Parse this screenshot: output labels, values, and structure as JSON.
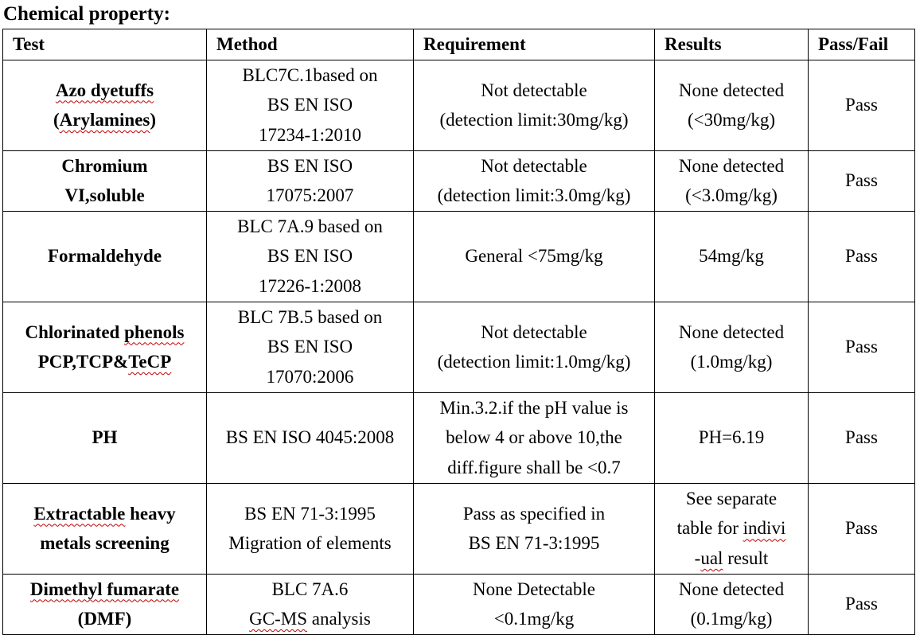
{
  "page_title": "Chemical property:",
  "columns": [
    "Test",
    "Method",
    "Requirement",
    "Results",
    "Pass/Fail"
  ],
  "rows": [
    {
      "test": [
        [
          "",
          "Azo dyetuffs"
        ],
        [
          "(",
          "Arylamines",
          ")"
        ]
      ],
      "method": [
        "BLC7C.1based on",
        "BS EN ISO",
        "17234-1:2010"
      ],
      "requirement": [
        "Not detectable",
        "(detection limit:30mg/kg)"
      ],
      "results": [
        "None detected",
        "(<30mg/kg)"
      ],
      "pass_fail": "Pass"
    },
    {
      "test": [
        [
          "Chromium"
        ],
        [
          "VI,soluble"
        ]
      ],
      "method": [
        "BS EN ISO",
        "17075:2007"
      ],
      "requirement": [
        "Not detectable",
        "(detection limit:3.0mg/kg)"
      ],
      "results": [
        "None detected",
        "(<3.0mg/kg)"
      ],
      "pass_fail": "Pass"
    },
    {
      "test": [
        [
          "Formaldehyde"
        ]
      ],
      "method": [
        "BLC 7A.9 based on",
        "BS EN ISO",
        "17226-1:2008"
      ],
      "requirement": [
        "General <75mg/kg"
      ],
      "results": [
        "54mg/kg"
      ],
      "pass_fail": "Pass"
    },
    {
      "test": [
        [
          "Chlorinated ",
          "phenols"
        ],
        [
          "PCP,TCP&",
          "TeCP"
        ]
      ],
      "method": [
        "BLC 7B.5 based on",
        "BS EN ISO",
        "17070:2006"
      ],
      "requirement": [
        "Not detectable",
        "(detection limit:1.0mg/kg)"
      ],
      "results": [
        "None detected",
        "(1.0mg/kg)"
      ],
      "pass_fail": "Pass"
    },
    {
      "test": [
        [
          "PH"
        ]
      ],
      "method": [
        "BS EN ISO 4045:2008"
      ],
      "requirement": [
        "Min.3.2.if the pH value is",
        "below 4 or above 10,the",
        "diff.figure shall be <0.7"
      ],
      "results": [
        "PH=6.19"
      ],
      "pass_fail": "Pass"
    },
    {
      "test": [
        [
          "",
          "Extractable",
          " heavy"
        ],
        [
          "metals screening"
        ]
      ],
      "method": [
        "BS EN 71-3:1995",
        "Migration of elements"
      ],
      "requirement": [
        "Pass as specified in",
        "BS EN 71-3:1995"
      ],
      "results": [
        [
          "See separate"
        ],
        [
          "table for ",
          "indivi"
        ],
        [
          "-",
          "ual",
          " result"
        ]
      ],
      "pass_fail": "Pass"
    },
    {
      "test": [
        [
          "",
          "Dimethyl fumarate"
        ],
        [
          "(DMF)"
        ]
      ],
      "method": [
        [
          "BLC 7A.6"
        ],
        [
          "",
          "GC-MS",
          " analysis"
        ]
      ],
      "requirement": [
        "None Detectable",
        "<0.1mg/kg"
      ],
      "results": [
        "None detected",
        "(0.1mg/kg)"
      ],
      "pass_fail": "Pass"
    }
  ]
}
